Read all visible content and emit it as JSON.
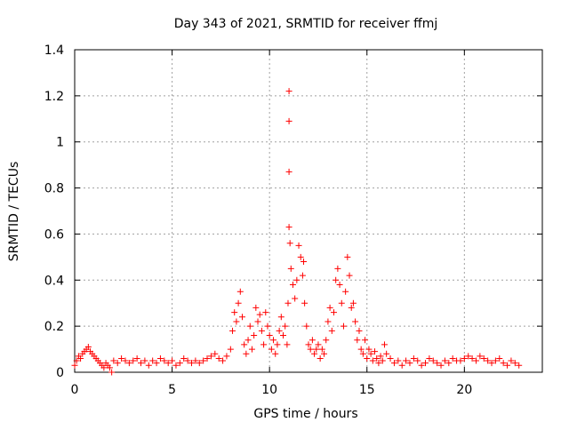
{
  "chart_data": {
    "type": "scatter",
    "title": "Day 343 of 2021, SRMTID for receiver ffmj",
    "xlabel": "GPS time / hours",
    "ylabel": "SRMTID / TECUs",
    "xlim": [
      0,
      24
    ],
    "ylim": [
      0,
      1.4
    ],
    "xticks": [
      0,
      5,
      10,
      15,
      20
    ],
    "xtick_labels": [
      "0",
      "5",
      "10",
      "15",
      "20"
    ],
    "yticks": [
      0,
      0.2,
      0.4,
      0.6,
      0.8,
      1.0,
      1.2,
      1.4
    ],
    "ytick_labels": [
      "0",
      "0.2",
      "0.4",
      "0.6",
      "0.8",
      "1",
      "1.2",
      "1.4"
    ],
    "grid": true,
    "marker": "+",
    "color": "#ff0000",
    "series": [
      {
        "name": "ffmj",
        "x": [
          0.0,
          0.1,
          0.2,
          0.3,
          0.4,
          0.5,
          0.6,
          0.7,
          0.8,
          0.9,
          1.0,
          1.1,
          1.2,
          1.3,
          1.4,
          1.5,
          1.6,
          1.7,
          1.8,
          1.9,
          2.0,
          2.2,
          2.4,
          2.6,
          2.8,
          3.0,
          3.2,
          3.4,
          3.6,
          3.8,
          4.0,
          4.2,
          4.4,
          4.6,
          4.8,
          5.0,
          5.2,
          5.4,
          5.6,
          5.8,
          6.0,
          6.2,
          6.4,
          6.6,
          6.8,
          7.0,
          7.2,
          7.4,
          7.6,
          7.8,
          8.0,
          8.1,
          8.2,
          8.3,
          8.4,
          8.5,
          8.6,
          8.7,
          8.8,
          8.9,
          9.0,
          9.1,
          9.2,
          9.3,
          9.4,
          9.5,
          9.6,
          9.7,
          9.8,
          9.9,
          10.0,
          10.1,
          10.2,
          10.3,
          10.4,
          10.5,
          10.6,
          10.7,
          10.8,
          10.9,
          10.95,
          11.0,
          11.0,
          11.0,
          11.0,
          11.05,
          11.1,
          11.2,
          11.3,
          11.4,
          11.5,
          11.6,
          11.7,
          11.75,
          11.8,
          11.9,
          12.0,
          12.1,
          12.2,
          12.3,
          12.4,
          12.5,
          12.6,
          12.7,
          12.8,
          12.9,
          13.0,
          13.1,
          13.2,
          13.3,
          13.4,
          13.5,
          13.6,
          13.7,
          13.8,
          13.9,
          14.0,
          14.1,
          14.2,
          14.3,
          14.4,
          14.5,
          14.6,
          14.7,
          14.8,
          14.9,
          15.0,
          15.1,
          15.2,
          15.3,
          15.4,
          15.5,
          15.6,
          15.7,
          15.8,
          15.9,
          16.0,
          16.2,
          16.4,
          16.6,
          16.8,
          17.0,
          17.2,
          17.4,
          17.6,
          17.8,
          18.0,
          18.2,
          18.4,
          18.6,
          18.8,
          19.0,
          19.2,
          19.4,
          19.6,
          19.8,
          20.0,
          20.2,
          20.4,
          20.6,
          20.8,
          21.0,
          21.2,
          21.4,
          21.6,
          21.8,
          22.0,
          22.2,
          22.4,
          22.6,
          22.8
        ],
        "y": [
          0.03,
          0.05,
          0.07,
          0.06,
          0.08,
          0.09,
          0.1,
          0.11,
          0.09,
          0.08,
          0.07,
          0.06,
          0.05,
          0.04,
          0.03,
          0.02,
          0.04,
          0.03,
          0.02,
          0.0,
          0.05,
          0.04,
          0.06,
          0.05,
          0.04,
          0.05,
          0.06,
          0.04,
          0.05,
          0.03,
          0.05,
          0.04,
          0.06,
          0.05,
          0.04,
          0.05,
          0.03,
          0.04,
          0.06,
          0.05,
          0.04,
          0.05,
          0.04,
          0.05,
          0.06,
          0.07,
          0.08,
          0.06,
          0.05,
          0.07,
          0.1,
          0.18,
          0.26,
          0.22,
          0.3,
          0.35,
          0.24,
          0.12,
          0.08,
          0.14,
          0.2,
          0.1,
          0.16,
          0.28,
          0.22,
          0.25,
          0.18,
          0.12,
          0.26,
          0.2,
          0.16,
          0.1,
          0.14,
          0.08,
          0.12,
          0.18,
          0.24,
          0.16,
          0.2,
          0.12,
          0.3,
          1.22,
          1.09,
          0.87,
          0.63,
          0.56,
          0.45,
          0.38,
          0.32,
          0.4,
          0.55,
          0.5,
          0.42,
          0.48,
          0.3,
          0.2,
          0.12,
          0.1,
          0.14,
          0.08,
          0.1,
          0.12,
          0.06,
          0.1,
          0.08,
          0.14,
          0.22,
          0.28,
          0.18,
          0.26,
          0.4,
          0.45,
          0.38,
          0.3,
          0.2,
          0.35,
          0.5,
          0.42,
          0.28,
          0.3,
          0.22,
          0.14,
          0.18,
          0.1,
          0.08,
          0.14,
          0.06,
          0.1,
          0.08,
          0.05,
          0.09,
          0.06,
          0.04,
          0.07,
          0.05,
          0.12,
          0.08,
          0.06,
          0.04,
          0.05,
          0.03,
          0.05,
          0.04,
          0.06,
          0.05,
          0.03,
          0.04,
          0.06,
          0.05,
          0.04,
          0.03,
          0.05,
          0.04,
          0.06,
          0.05,
          0.05,
          0.06,
          0.07,
          0.06,
          0.05,
          0.07,
          0.06,
          0.05,
          0.04,
          0.05,
          0.06,
          0.04,
          0.03,
          0.05,
          0.04,
          0.03
        ]
      }
    ]
  }
}
